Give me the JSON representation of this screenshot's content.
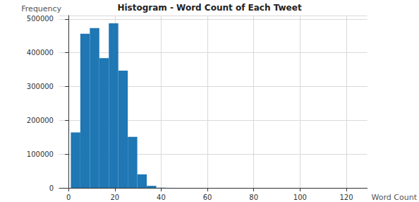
{
  "chart_data": {
    "type": "histogram",
    "title": "Histogram - Word Count of Each Tweet",
    "x_label": "Word Count",
    "y_label": "Frequency",
    "bins": [
      1,
      5.1,
      9.2,
      13.3,
      17.4,
      21.5,
      25.6,
      29.7,
      33.8,
      37.9,
      42,
      46.1,
      50.2,
      54.3,
      58.4,
      62.5,
      66.6,
      70.7,
      74.8,
      78.9,
      83,
      87.1,
      91.2,
      95.3,
      99.4,
      103.5,
      107.6,
      111.7,
      115.8,
      119.9,
      124
    ],
    "counts": [
      164000,
      456000,
      473000,
      384000,
      487000,
      347000,
      151000,
      40000,
      6000,
      500,
      100,
      50,
      20,
      10,
      5,
      3,
      2,
      1,
      1,
      1,
      0,
      0,
      1,
      0,
      0,
      0,
      0,
      0,
      0,
      1
    ],
    "color": "#1f77b4",
    "xlim": [
      -4,
      129
    ],
    "xticks": [
      0,
      20,
      40,
      60,
      80,
      100,
      120
    ],
    "ylim": [
      0,
      510000
    ],
    "yticks": [
      0,
      100000,
      200000,
      300000,
      400000,
      500000
    ],
    "grid": true
  }
}
